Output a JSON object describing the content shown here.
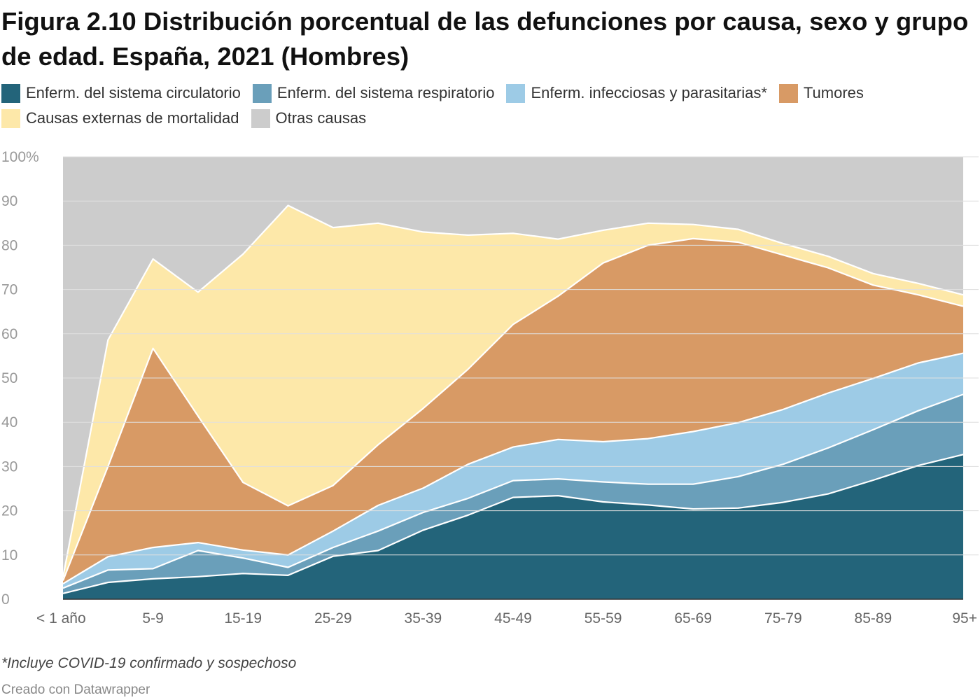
{
  "title": "Figura 2.10 Distribución porcentual de las defunciones por causa, sexo y grupo de edad. España, 2021 (Hombres)",
  "legend": [
    {
      "label": "Enferm. del sistema circulatorio",
      "color": "#23647a"
    },
    {
      "label": "Enferm. del sistema respiratorio",
      "color": "#6a9fba"
    },
    {
      "label": "Enferm. infecciosas y parasitarias*",
      "color": "#9dcbe6"
    },
    {
      "label": "Tumores",
      "color": "#d89a65"
    },
    {
      "label": "Causas externas de mortalidad",
      "color": "#fde8a9"
    },
    {
      "label": "Otras causas",
      "color": "#cccccc"
    }
  ],
  "footnote": "*Incluye COVID-19 confirmado y sospechoso",
  "credit": "Creado con Datawrapper",
  "chart_data": {
    "type": "area",
    "stacked": true,
    "x": [
      "< 1 año",
      "1-4",
      "5-9",
      "10-14",
      "15-19",
      "20-24",
      "25-29",
      "30-34",
      "35-39",
      "40-44",
      "45-49",
      "50-54",
      "55-59",
      "60-64",
      "65-69",
      "70-74",
      "75-79",
      "80-84",
      "85-89",
      "90-94",
      "95+"
    ],
    "x_tick_labels": [
      "< 1 año",
      "5-9",
      "15-19",
      "25-29",
      "35-39",
      "45-49",
      "55-59",
      "65-69",
      "75-79",
      "85-89",
      "95+"
    ],
    "y_ticks": [
      "100%",
      "90",
      "80",
      "70",
      "60",
      "50",
      "40",
      "30",
      "20",
      "10",
      "0"
    ],
    "ylim": [
      0,
      100
    ],
    "series": [
      {
        "name": "Enferm. del sistema circulatorio",
        "color": "#23647a",
        "values": [
          1.3,
          3.8,
          4.6,
          5.1,
          5.8,
          5.4,
          9.7,
          11.0,
          15.6,
          19.0,
          23.0,
          23.4,
          22.0,
          21.3,
          20.4,
          20.6,
          21.9,
          23.8,
          26.9,
          30.2,
          32.7
        ]
      },
      {
        "name": "Enferm. del sistema respiratorio",
        "color": "#6a9fba",
        "values": [
          1.2,
          2.8,
          2.3,
          5.9,
          3.5,
          1.8,
          2.0,
          4.4,
          4.0,
          3.8,
          3.8,
          3.8,
          4.5,
          4.7,
          5.6,
          7.1,
          8.6,
          10.4,
          11.4,
          12.4,
          13.6
        ]
      },
      {
        "name": "Enferm. infecciosas y parasitarias*",
        "color": "#9dcbe6",
        "values": [
          1.0,
          3.0,
          4.8,
          1.8,
          1.8,
          2.8,
          3.7,
          5.8,
          5.5,
          7.7,
          7.6,
          8.9,
          9.1,
          10.3,
          11.9,
          12.2,
          12.4,
          12.4,
          11.6,
          10.8,
          9.3
        ]
      },
      {
        "name": "Tumores",
        "color": "#d89a65",
        "values": [
          0.7,
          20.4,
          45.0,
          28.6,
          15.3,
          11.1,
          10.3,
          13.7,
          18.0,
          21.5,
          27.7,
          32.4,
          40.4,
          43.7,
          43.6,
          40.8,
          34.9,
          28.3,
          21.1,
          15.4,
          10.6
        ]
      },
      {
        "name": "Causas externas de mortalidad",
        "color": "#fde8a9",
        "values": [
          0.8,
          28.6,
          20.2,
          28.0,
          51.6,
          67.9,
          58.3,
          50.1,
          39.9,
          30.3,
          20.6,
          12.9,
          7.4,
          5.0,
          3.2,
          2.9,
          2.6,
          2.6,
          2.6,
          2.6,
          2.6
        ]
      },
      {
        "name": "Otras causas",
        "color": "#cccccc",
        "values": [
          95.0,
          41.4,
          23.1,
          30.6,
          22.0,
          11.0,
          16.0,
          15.0,
          17.0,
          17.7,
          17.3,
          18.6,
          16.6,
          15.0,
          15.3,
          16.4,
          19.6,
          22.5,
          26.4,
          28.6,
          31.2
        ]
      }
    ]
  }
}
